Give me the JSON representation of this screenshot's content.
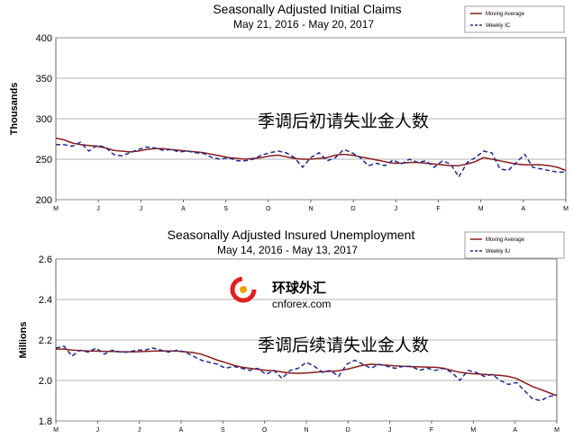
{
  "logo": {
    "main": "环球外汇",
    "sub": "cnforex.com"
  },
  "chart_data": [
    {
      "type": "line",
      "title": "Seasonally Adjusted Initial Claims",
      "subtitle": "May 21, 2016  -  May 20, 2017",
      "ylabel": "Thousands",
      "ylim": [
        200,
        400
      ],
      "yticks": [
        200,
        250,
        300,
        350,
        400
      ],
      "xticks": [
        "M",
        "J",
        "J",
        "A",
        "S",
        "O",
        "N",
        "D",
        "J",
        "F",
        "M",
        "A",
        "M"
      ],
      "overlay": "季调后初请失业金人数",
      "grid": true,
      "legend": "top-right",
      "colors": {
        "moving_average": "#8b1a1a",
        "weekly": "#1f2d8c"
      },
      "series": [
        {
          "name": "Moving Average",
          "style": "solid",
          "values": [
            276,
            274,
            270,
            268,
            267,
            266,
            264,
            261,
            260,
            259,
            260,
            262,
            263,
            263,
            262,
            261,
            260,
            259,
            258,
            256,
            254,
            252,
            251,
            250,
            251,
            252,
            254,
            255,
            253,
            251,
            250,
            250,
            251,
            252,
            255,
            256,
            255,
            253,
            251,
            249,
            247,
            245,
            245,
            246,
            246,
            245,
            244,
            243,
            242,
            242,
            244,
            247,
            252,
            250,
            248,
            246,
            244,
            243,
            243,
            243,
            242,
            240,
            236
          ]
        },
        {
          "name": "Weekly IC",
          "style": "dashed",
          "values": [
            268,
            268,
            266,
            271,
            260,
            267,
            265,
            256,
            254,
            258,
            262,
            265,
            264,
            261,
            262,
            259,
            260,
            258,
            257,
            252,
            250,
            252,
            248,
            248,
            250,
            255,
            258,
            260,
            258,
            252,
            240,
            252,
            258,
            248,
            252,
            262,
            258,
            252,
            242,
            245,
            242,
            249,
            244,
            250,
            246,
            248,
            240,
            248,
            244,
            228,
            246,
            252,
            260,
            258,
            238,
            236,
            246,
            256,
            240,
            238,
            236,
            234,
            234
          ]
        }
      ]
    },
    {
      "type": "line",
      "title": "Seasonally Adjusted Insured Unemployment",
      "subtitle": "May 14, 2016  -  May 13, 2017",
      "ylabel": "Millions",
      "ylim": [
        1.8,
        2.6
      ],
      "yticks": [
        "1.8",
        "2.0",
        "2.2",
        "2.4",
        "2.6"
      ],
      "xticks": [
        "M",
        "J",
        "J",
        "A",
        "S",
        "O",
        "N",
        "D",
        "J",
        "F",
        "M",
        "A",
        "M"
      ],
      "overlay": "季调后续请失业金人数",
      "grid": true,
      "legend": "top-right",
      "colors": {
        "moving_average": "#8b1a1a",
        "weekly": "#1f2d8c"
      },
      "series": [
        {
          "name": "Moving Average",
          "style": "solid",
          "values": [
            2.155,
            2.155,
            2.15,
            2.148,
            2.146,
            2.145,
            2.144,
            2.143,
            2.142,
            2.142,
            2.142,
            2.143,
            2.145,
            2.146,
            2.146,
            2.145,
            2.142,
            2.138,
            2.13,
            2.115,
            2.1,
            2.088,
            2.075,
            2.066,
            2.06,
            2.055,
            2.05,
            2.048,
            2.042,
            2.037,
            2.035,
            2.037,
            2.04,
            2.043,
            2.045,
            2.048,
            2.055,
            2.065,
            2.075,
            2.08,
            2.078,
            2.075,
            2.072,
            2.07,
            2.068,
            2.067,
            2.066,
            2.065,
            2.06,
            2.05,
            2.04,
            2.035,
            2.032,
            2.03,
            2.028,
            2.025,
            2.02,
            2.01,
            1.99,
            1.97,
            1.955,
            1.94,
            1.925
          ]
        },
        {
          "name": "Weekly IU",
          "style": "dashed",
          "values": [
            2.16,
            2.17,
            2.12,
            2.15,
            2.14,
            2.16,
            2.13,
            2.15,
            2.14,
            2.14,
            2.15,
            2.15,
            2.16,
            2.15,
            2.14,
            2.15,
            2.14,
            2.12,
            2.1,
            2.09,
            2.08,
            2.06,
            2.07,
            2.06,
            2.05,
            2.06,
            2.03,
            2.05,
            2.01,
            2.05,
            2.06,
            2.09,
            2.07,
            2.04,
            2.05,
            2.02,
            2.08,
            2.1,
            2.08,
            2.06,
            2.08,
            2.07,
            2.06,
            2.07,
            2.07,
            2.05,
            2.06,
            2.05,
            2.06,
            2.04,
            2.0,
            2.05,
            2.04,
            2.02,
            2.03,
            2.0,
            1.98,
            1.99,
            1.95,
            1.91,
            1.9,
            1.92,
            1.93
          ]
        }
      ]
    }
  ]
}
